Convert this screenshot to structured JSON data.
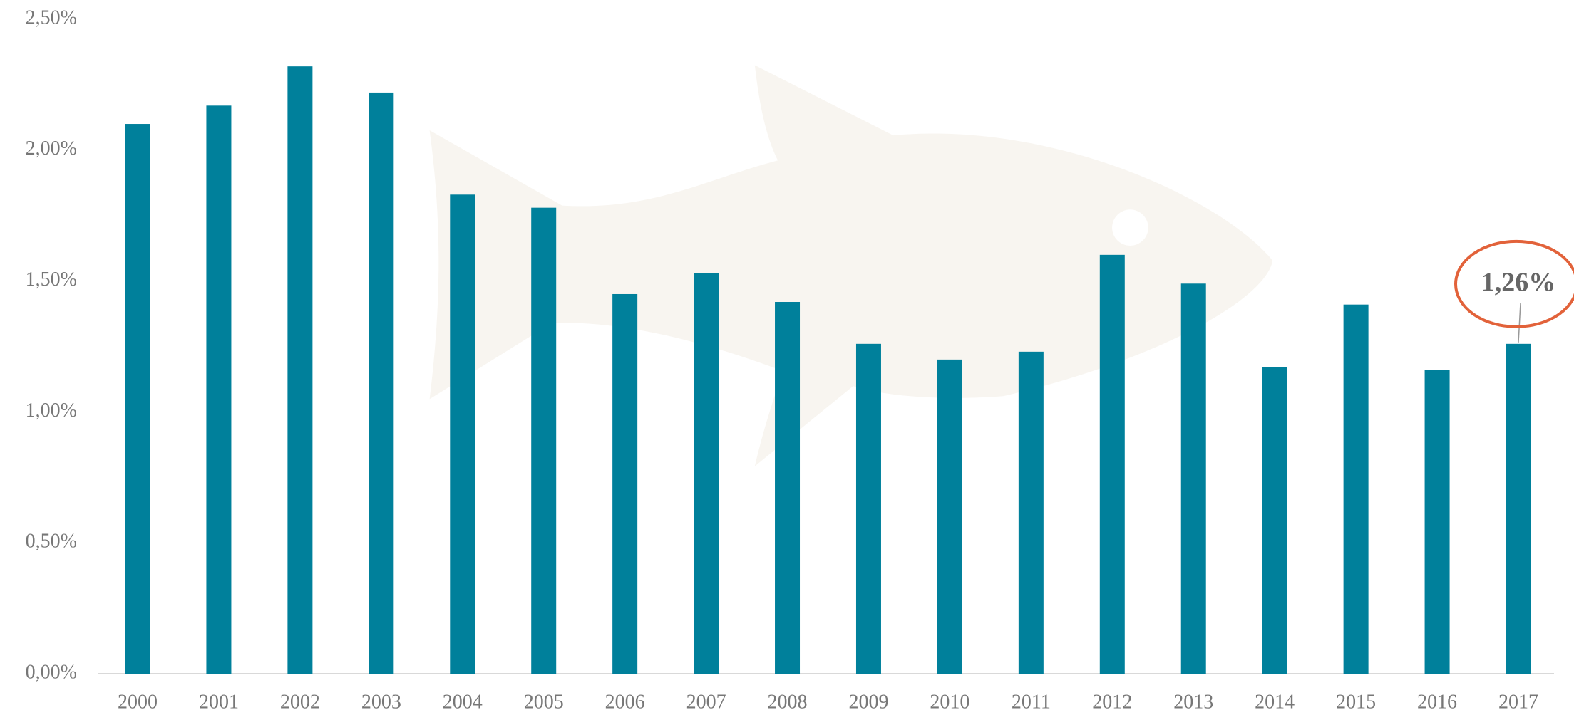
{
  "chart_data": {
    "type": "bar",
    "categories": [
      "2000",
      "2001",
      "2002",
      "2003",
      "2004",
      "2005",
      "2006",
      "2007",
      "2008",
      "2009",
      "2010",
      "2011",
      "2012",
      "2013",
      "2014",
      "2015",
      "2016",
      "2017"
    ],
    "values": [
      2.1,
      2.17,
      2.32,
      2.22,
      1.83,
      1.78,
      1.45,
      1.53,
      1.42,
      1.26,
      1.2,
      1.23,
      1.6,
      1.49,
      1.17,
      1.41,
      1.16,
      1.26
    ],
    "value_labels": [
      null,
      null,
      null,
      null,
      null,
      null,
      null,
      null,
      null,
      null,
      null,
      null,
      null,
      null,
      null,
      null,
      null,
      "1,26%"
    ],
    "color": "#00809b",
    "ylim": [
      0,
      2.5
    ],
    "yticks": [
      {
        "value": 0,
        "label": "0,00%"
      },
      {
        "value": 0.5,
        "label": "0,50%"
      },
      {
        "value": 1,
        "label": "1,00%"
      },
      {
        "value": 1.5,
        "label": "1,50%"
      },
      {
        "value": 2,
        "label": "2,00%"
      },
      {
        "value": 2.5,
        "label": "2,50%"
      }
    ],
    "grid": false
  }
}
